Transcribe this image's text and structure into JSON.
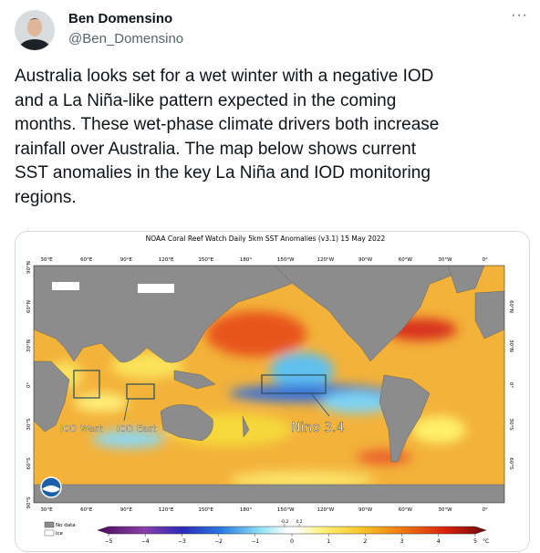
{
  "author": {
    "name": "Ben Domensino",
    "handle": "@Ben_Domensino"
  },
  "tweet": {
    "lines": [
      "Australia looks set for a wet winter with a negative IOD",
      "and a La Niña-like pattern expected in the coming",
      "months. These wet-phase climate drivers both increase",
      "rainfall over Australia. The map below shows current",
      "SST anomalies in the key La Niña and IOD monitoring",
      "regions."
    ]
  },
  "map": {
    "title": "NOAA Coral Reef Watch Daily 5km SST Anomalies  (v3.1)   15 May 2022",
    "longitudes": [
      "30°E",
      "60°E",
      "90°E",
      "120°E",
      "150°E",
      "180°",
      "150°W",
      "120°W",
      "90°W",
      "60°W",
      "30°W",
      "0°"
    ],
    "latitudes_left": [
      "90°N",
      "60°N",
      "30°N",
      "0°",
      "30°S",
      "60°S",
      "90°S"
    ],
    "latitudes_right": [
      "60°N",
      "30°N",
      "0°",
      "30°S",
      "60°S"
    ],
    "regions": [
      "IOD West",
      "IOD East",
      "Nino 3.4"
    ],
    "legend": [
      "No data",
      "Ice"
    ],
    "colorbar": {
      "lim": [
        -5,
        5
      ],
      "ticks": [
        {
          "value": -5,
          "label": "−5"
        },
        {
          "value": -4,
          "label": "−4"
        },
        {
          "value": -3,
          "label": "−3"
        },
        {
          "value": -2,
          "label": "−2"
        },
        {
          "value": -1,
          "label": "−1"
        },
        0,
        1,
        2,
        3,
        4,
        5
      ],
      "fine_ticks": [
        -0.2,
        0.2
      ],
      "unit": "°C"
    }
  }
}
